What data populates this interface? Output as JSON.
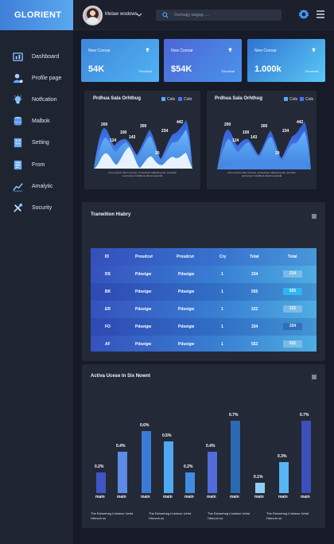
{
  "app": {
    "logo": "GLORIENT"
  },
  "header": {
    "username": "Melaw wodows",
    "search_placeholder": "Ouovagy wagug......"
  },
  "sidebar": {
    "items": [
      {
        "label": "Dashboard",
        "icon": "dashboard-icon"
      },
      {
        "label": "Profile page",
        "icon": "user-icon"
      },
      {
        "label": "Notfcation",
        "icon": "lightbulb-icon"
      },
      {
        "label": "Malbok",
        "icon": "database-icon"
      },
      {
        "label": "Setting",
        "icon": "building-icon"
      },
      {
        "label": "From",
        "icon": "document-icon"
      },
      {
        "label": "Amalytic",
        "icon": "line-chart-icon"
      },
      {
        "label": "Socurity",
        "icon": "tools-icon"
      }
    ]
  },
  "stats": [
    {
      "label": "New Connar",
      "value": "54K",
      "sub": "Tchoalnal"
    },
    {
      "label": "New Connar",
      "value": "$54K",
      "sub": "Tchoalnal"
    },
    {
      "label": "New Connar",
      "value": "1.000k",
      "sub": "Tchoalnal"
    }
  ],
  "area_charts": [
    {
      "title": "Prdhua Sala Orhthug",
      "legend": [
        "Colo",
        "Colo"
      ],
      "labels": [
        "200",
        "124",
        "100",
        "143",
        "300",
        "20",
        "234",
        "442"
      ],
      "note": [
        "Lorem ipsum dolor sit amet, consectetur adipiscing elit, sed diam",
        "sed tempor incididunt ullamco gravida"
      ]
    },
    {
      "title": "Prdhua Sala Orhthug",
      "legend": [
        "Colo",
        "Colo"
      ],
      "labels": [
        "200",
        "124",
        "100",
        "143",
        "300",
        "20",
        "234",
        "442"
      ],
      "note": [
        "Lorem ipsum dolor sit amet, consectetur adipiscing elit, sed diam",
        "sed tempor incididunt ullamco gravida"
      ]
    }
  ],
  "transaction": {
    "title": "Tranwition Hiabry",
    "columns": [
      "ID",
      "Proudcut",
      "Proudcut",
      "Cry",
      "Total",
      "Total"
    ],
    "rows": [
      {
        "id": "RS",
        "p1": "Pdseigw",
        "p2": "Pdseigw",
        "qty": "1",
        "total": "234",
        "badge": "234"
      },
      {
        "id": "BK",
        "p1": "Pdseigw",
        "p2": "Pdseigw",
        "qty": "1",
        "total": "555",
        "badge": "555"
      },
      {
        "id": "ER",
        "p1": "Pdseigw",
        "p2": "Pdseigw",
        "qty": "1",
        "total": "222",
        "badge": "222"
      },
      {
        "id": "FO",
        "p1": "Pdseigw",
        "p2": "Pdseigw",
        "qty": "1",
        "total": "334",
        "badge": "334"
      },
      {
        "id": "AF",
        "p1": "Pdseigw",
        "p2": "Pdseigw",
        "qty": "1",
        "total": "552",
        "badge": "552"
      }
    ]
  },
  "activity": {
    "title": "Activa Ucese In Six Nownt",
    "captions": [
      [
        "The Eshoeheg Lhsheue Uehd",
        "Hhevuh us"
      ],
      [
        "The Eshoeheg Lhsheue Uehd",
        "Hhevuh us"
      ],
      [
        "The Eshoeheg Lhsheue Uehd",
        "Hhevuh us"
      ],
      [
        "The Eshoeheg Lhsheue Uehd",
        "Hhevuh us"
      ]
    ]
  },
  "chart_data": [
    {
      "type": "area",
      "labels": [
        "200",
        "124",
        "100",
        "143",
        "300",
        "20",
        "234",
        "442"
      ]
    },
    {
      "type": "area",
      "labels": [
        "200",
        "124",
        "100",
        "143",
        "300",
        "20",
        "234",
        "442"
      ]
    },
    {
      "type": "bar",
      "categories": [
        "main",
        "main",
        "main",
        "main",
        "main",
        "main",
        "main",
        "main",
        "main",
        "main"
      ],
      "values": [
        0.2,
        0.4,
        0.6,
        0.5,
        0.2,
        0.4,
        0.7,
        0.1,
        0.3,
        0.7
      ],
      "labels": [
        "0.2%",
        "0.4%",
        "0.6%",
        "0.5%",
        "0.2%",
        "0.4%",
        "0.7%",
        "0.1%",
        "0.3%",
        "0.7%"
      ],
      "colors": [
        "#3f55c4",
        "#5d8be7",
        "#3a7ad8",
        "#4fa8f2",
        "#3e8de3",
        "#536bd8",
        "#2c69b1",
        "#8fcff5",
        "#56b5f5",
        "#3d4fba"
      ]
    }
  ]
}
